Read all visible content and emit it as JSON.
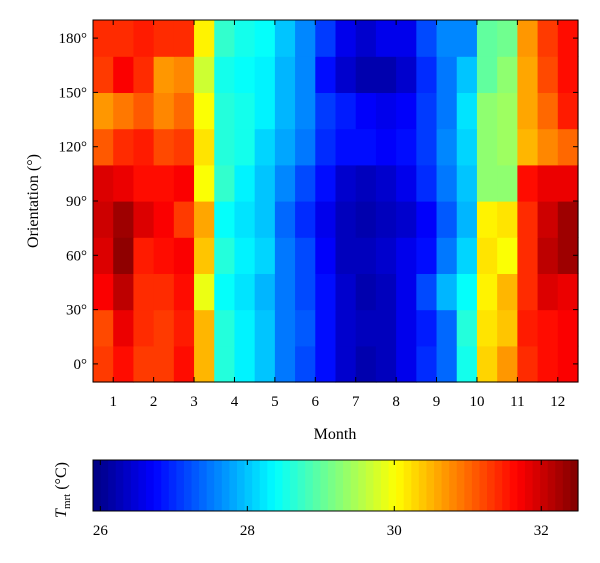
{
  "chart_data": {
    "type": "heatmap",
    "xlabel": "Month",
    "ylabel": "Orientation (°)",
    "x_ticks": [
      "1",
      "2",
      "3",
      "4",
      "5",
      "6",
      "7",
      "8",
      "9",
      "10",
      "11",
      "12"
    ],
    "y_ticks": [
      "0°",
      "30°",
      "60°",
      "90°",
      "120°",
      "150°",
      "180°"
    ],
    "x_range": [
      0.5,
      12.5
    ],
    "y_range": [
      -10,
      190
    ],
    "x_columns": 24,
    "y_rows": 10,
    "colormap": "jet",
    "colorbar": {
      "label_main": "T",
      "label_sub": "mrt",
      "label_unit": "(°C)",
      "range": [
        25.9,
        32.5
      ],
      "ticks": [
        "26",
        "28",
        "30",
        "32"
      ],
      "tick_values": [
        26,
        28,
        30,
        32
      ]
    },
    "values": [
      [
        31.3,
        31.6,
        31.3,
        31.3,
        31.6,
        30.5,
        28.6,
        28.3,
        28.0,
        27.5,
        27.2,
        26.8,
        26.4,
        26.2,
        26.3,
        26.6,
        27.0,
        27.4,
        28.5,
        30.3,
        30.7,
        31.4,
        31.6,
        31.7
      ],
      [
        31.2,
        31.8,
        31.4,
        31.3,
        31.5,
        30.5,
        28.6,
        28.3,
        28.0,
        27.5,
        27.3,
        26.8,
        26.4,
        26.3,
        26.3,
        26.6,
        26.9,
        27.4,
        28.6,
        30.2,
        30.4,
        31.5,
        31.6,
        31.7
      ],
      [
        31.7,
        32.1,
        31.4,
        31.4,
        31.6,
        29.9,
        28.4,
        28.2,
        27.9,
        27.5,
        27.2,
        26.8,
        26.4,
        26.2,
        26.3,
        26.6,
        27.2,
        27.9,
        28.4,
        30.1,
        30.5,
        31.4,
        31.9,
        31.8
      ],
      [
        31.9,
        32.4,
        31.5,
        31.6,
        31.7,
        30.4,
        28.6,
        28.3,
        28.1,
        27.5,
        27.2,
        26.7,
        26.3,
        26.3,
        26.4,
        26.6,
        26.8,
        27.5,
        28.1,
        30.2,
        30.0,
        31.4,
        32.1,
        32.3
      ],
      [
        32.0,
        32.3,
        31.9,
        31.7,
        31.3,
        30.6,
        28.4,
        28.2,
        28.0,
        27.4,
        27.0,
        26.6,
        26.3,
        26.2,
        26.3,
        26.4,
        26.7,
        27.3,
        27.9,
        30.1,
        30.2,
        31.4,
        32.0,
        32.3
      ],
      [
        31.9,
        31.8,
        31.6,
        31.6,
        31.7,
        30.0,
        28.7,
        28.3,
        28.0,
        27.6,
        27.2,
        26.8,
        26.4,
        26.3,
        26.4,
        26.6,
        27.0,
        27.5,
        28.0,
        29.3,
        29.3,
        31.6,
        31.8,
        31.8
      ],
      [
        31.1,
        31.4,
        31.5,
        31.2,
        31.3,
        30.2,
        28.6,
        28.5,
        28.1,
        27.8,
        27.5,
        27.0,
        26.8,
        26.8,
        26.7,
        26.8,
        27.1,
        27.6,
        28.1,
        29.3,
        29.4,
        30.5,
        30.8,
        31.0
      ],
      [
        30.7,
        30.9,
        31.1,
        30.8,
        31.0,
        30.0,
        28.6,
        28.5,
        28.3,
        27.9,
        27.6,
        27.1,
        26.9,
        26.7,
        26.6,
        26.7,
        27.1,
        27.5,
        28.2,
        29.3,
        29.4,
        30.6,
        31.0,
        31.5
      ],
      [
        31.3,
        31.7,
        31.4,
        30.7,
        30.8,
        29.7,
        28.5,
        28.4,
        28.3,
        27.9,
        27.6,
        26.8,
        26.4,
        26.2,
        26.2,
        26.4,
        27.0,
        27.5,
        28.0,
        29.0,
        29.3,
        30.6,
        31.2,
        31.6
      ],
      [
        31.4,
        31.4,
        31.5,
        31.4,
        31.4,
        30.1,
        28.7,
        28.5,
        28.4,
        28.0,
        27.6,
        27.1,
        26.6,
        26.4,
        26.6,
        26.6,
        27.2,
        27.6,
        27.6,
        29.0,
        29.1,
        30.7,
        31.3,
        31.6
      ]
    ]
  }
}
